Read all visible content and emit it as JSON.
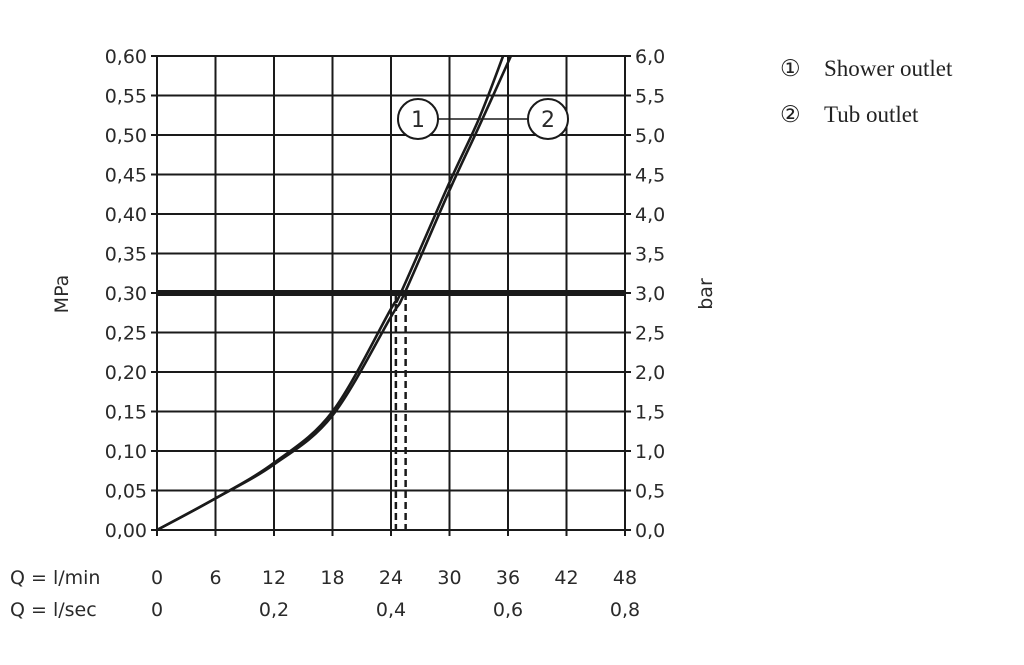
{
  "chart_data": {
    "type": "line",
    "ylabel_left": "MPa",
    "ylabel_right": "bar",
    "xlabel_rows": [
      {
        "label": "Q = l/min",
        "ticks": [
          "0",
          "6",
          "12",
          "18",
          "24",
          "30",
          "36",
          "42",
          "48"
        ],
        "values": [
          0,
          6,
          12,
          18,
          24,
          30,
          36,
          42,
          48
        ]
      },
      {
        "label": "Q = l/sec",
        "ticks": [
          "0",
          "0,2",
          "0,4",
          "0,6",
          "0,8"
        ],
        "values": [
          0,
          12,
          24,
          36,
          48
        ]
      }
    ],
    "xlim": [
      0,
      48
    ],
    "ylim": [
      0,
      0.6
    ],
    "y_ticks_left": [
      "0,00",
      "0,05",
      "0,10",
      "0,15",
      "0,20",
      "0,25",
      "0,30",
      "0,35",
      "0,40",
      "0,45",
      "0,50",
      "0,55",
      "0,60"
    ],
    "y_ticks_right": [
      "0,0",
      "0,5",
      "1,0",
      "1,5",
      "2,0",
      "2,5",
      "3,0",
      "3,5",
      "4,0",
      "4,5",
      "5,0",
      "5,5",
      "6,0"
    ],
    "grid": true,
    "reference_line_y": 0.3,
    "reference_dashed_x": [
      24.5,
      25.5
    ],
    "series": [
      {
        "name": "Shower outlet",
        "marker": "1",
        "x": [
          0,
          6,
          12,
          18,
          24,
          25,
          30,
          33,
          35.5
        ],
        "y": [
          0,
          0.04,
          0.085,
          0.15,
          0.28,
          0.3,
          0.44,
          0.52,
          0.6
        ]
      },
      {
        "name": "Tub outlet",
        "marker": "2",
        "x": [
          0,
          6,
          12,
          18,
          24,
          25.4,
          30,
          33,
          36.3
        ],
        "y": [
          0,
          0.04,
          0.083,
          0.145,
          0.27,
          0.3,
          0.43,
          0.51,
          0.6
        ]
      }
    ],
    "legend": [
      {
        "symbol": "①",
        "label": "Shower outlet"
      },
      {
        "symbol": "②",
        "label": "Tub outlet"
      }
    ],
    "legend_position": "right",
    "color": "#1a1a1a"
  }
}
